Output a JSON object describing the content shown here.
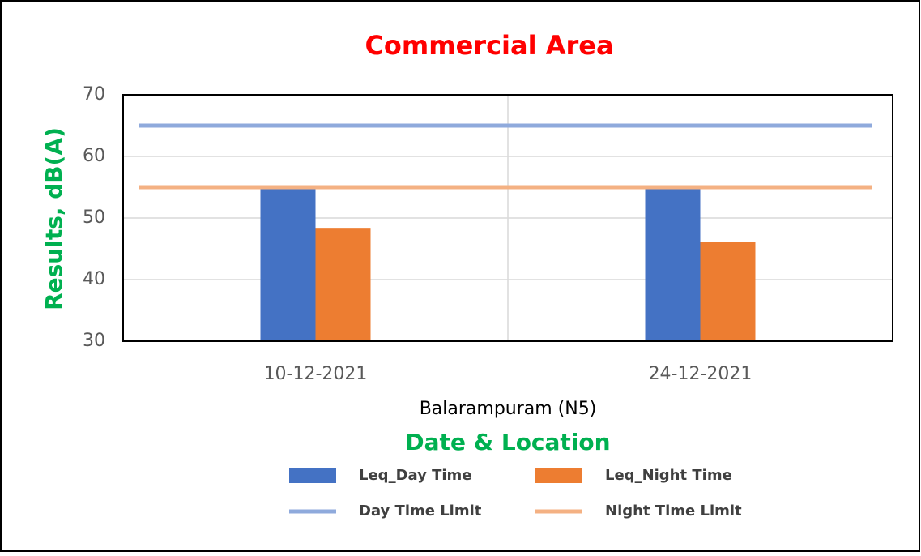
{
  "chart_data": {
    "type": "bar",
    "title": "Commercial Area",
    "y_label": "Results, dB(A)",
    "x_label": "Date & Location",
    "group_label": "Balarampuram (N5)",
    "categories": [
      "10-12-2021",
      "24-12-2021"
    ],
    "series": [
      {
        "name": "Leq_Day Time",
        "color": "#4472c4",
        "type": "bar",
        "values": [
          54.7,
          55.1
        ]
      },
      {
        "name": "Leq_Night Time",
        "color": "#ed7d31",
        "type": "bar",
        "values": [
          48.4,
          46.1
        ]
      },
      {
        "name": "Day Time Limit",
        "color": "#8faadc",
        "type": "line",
        "values": [
          65,
          65
        ]
      },
      {
        "name": "Night Time Limit",
        "color": "#f4b183",
        "type": "line",
        "values": [
          55,
          55
        ]
      }
    ],
    "ylim": [
      30,
      70
    ],
    "yticks": [
      30,
      40,
      50,
      60,
      70
    ],
    "grid": true,
    "legend": "bottom"
  }
}
